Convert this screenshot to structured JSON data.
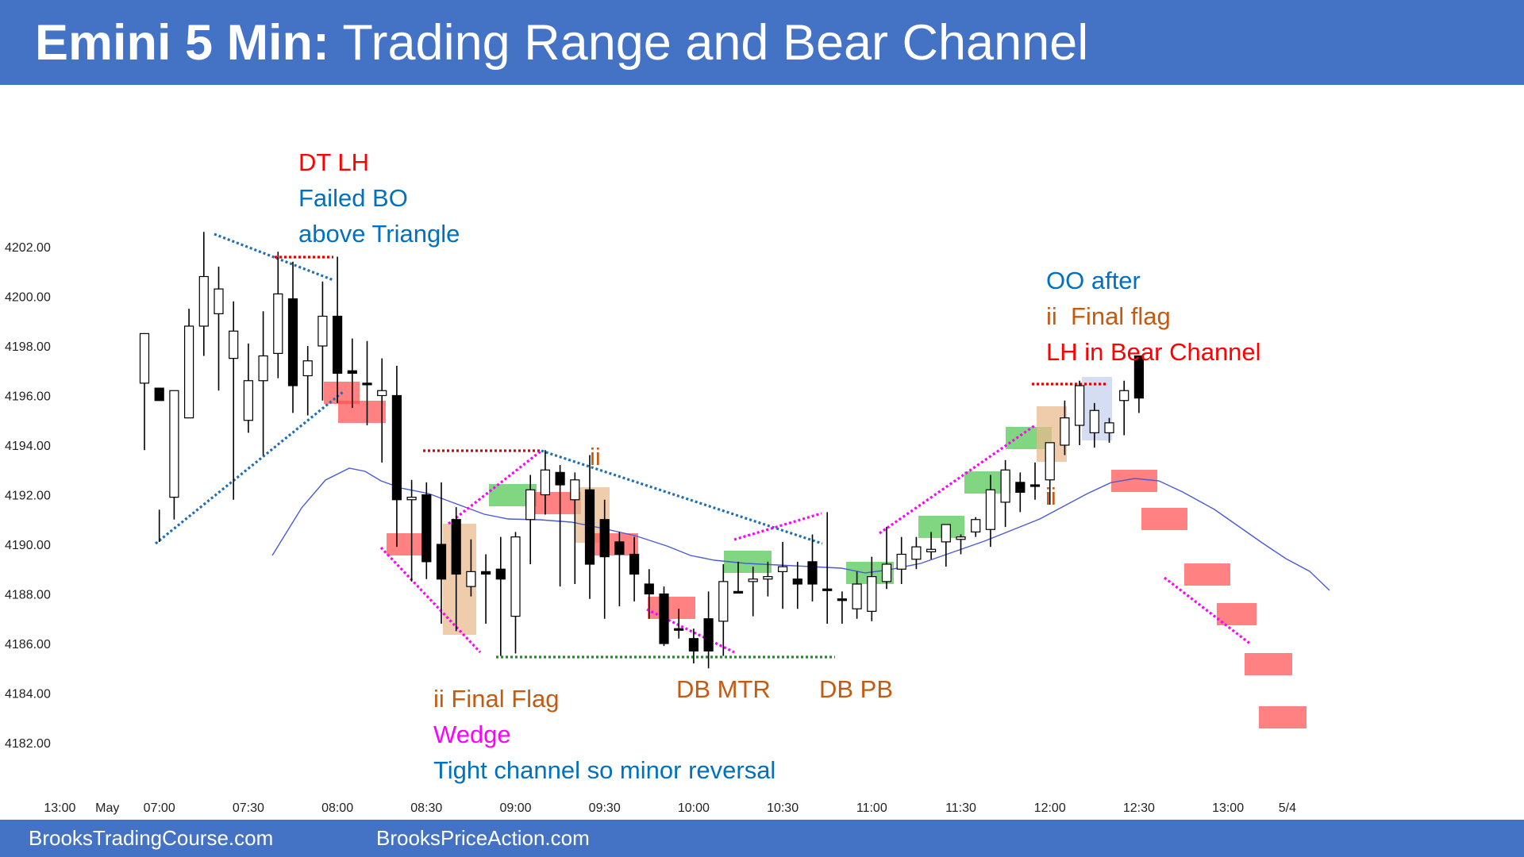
{
  "header": {
    "title_bold": "Emini 5 Min:",
    "title_rest": " Trading Range and Bear Channel"
  },
  "footer": {
    "left": "BrooksTradingCourse.com",
    "right": "BrooksPriceAction.com"
  },
  "colors": {
    "header_bg": "#4472c4",
    "bull_bar": "#ffffff",
    "bear_bar": "#000000",
    "ema": "#4a5bd6",
    "red_text": "#ff0000",
    "blue_text": "#0070c0",
    "orange_text": "#c55a11",
    "magenta_text": "#ff00ff",
    "red_box": "#ff5050",
    "green_box": "#50c850",
    "tan_box": "#e8b98c",
    "lav_box": "#c5d0ee"
  },
  "chart_data": {
    "type": "candlestick",
    "title": "Emini 5 Min: Trading Range and Bear Channel",
    "ylim": [
      4180.6,
      4205.8
    ],
    "y_ticks": [
      "4202.00",
      "4200.00",
      "4198.00",
      "4196.00",
      "4194.00",
      "4192.00",
      "4190.00",
      "4188.00",
      "4186.00",
      "4184.00",
      "4182.00"
    ],
    "x_ticks": [
      {
        "label": "13:00",
        "bar": -5.7
      },
      {
        "label": "May",
        "bar": -2.5
      },
      {
        "label": "07:00",
        "bar": 1
      },
      {
        "label": "07:30",
        "bar": 7
      },
      {
        "label": "08:00",
        "bar": 13
      },
      {
        "label": "08:30",
        "bar": 19
      },
      {
        "label": "09:00",
        "bar": 25
      },
      {
        "label": "09:30",
        "bar": 31
      },
      {
        "label": "10:00",
        "bar": 37
      },
      {
        "label": "10:30",
        "bar": 43
      },
      {
        "label": "11:00",
        "bar": 49
      },
      {
        "label": "11:30",
        "bar": 55
      },
      {
        "label": "12:00",
        "bar": 61
      },
      {
        "label": "12:30",
        "bar": 67
      },
      {
        "label": "13:00",
        "bar": 73
      },
      {
        "label": "5/4",
        "bar": 77
      }
    ],
    "bars": [
      [
        4196.5,
        4198.5,
        4193.8,
        4198.3
      ],
      [
        4196.3,
        4195.8,
        4190.1,
        4191.4
      ],
      [
        4191.9,
        4196.2,
        4191.0,
        4194.0
      ],
      [
        4195.1,
        4198.8,
        4195.4,
        4199.5
      ],
      [
        4198.8,
        4200.8,
        4197.6,
        4202.6
      ],
      [
        4199.3,
        4200.3,
        4196.2,
        4201.2
      ],
      [
        4197.5,
        4198.6,
        4191.8,
        4199.8
      ],
      [
        4195.0,
        4196.6,
        4194.5,
        4198.1
      ],
      [
        4196.6,
        4197.6,
        4193.6,
        4199.4
      ],
      [
        4197.7,
        4200.1,
        4196.7,
        4201.8
      ],
      [
        4199.9,
        4196.4,
        4195.3,
        4201.4
      ],
      [
        4196.8,
        4197.4,
        4195.2,
        4198.0
      ],
      [
        4198.0,
        4199.2,
        4195.8,
        4200.6
      ],
      [
        4199.2,
        4196.9,
        4195.7,
        4201.6
      ],
      [
        4197.0,
        4196.9,
        4195.5,
        4198.3
      ],
      [
        4196.5,
        4196.5,
        4194.8,
        4198.2
      ],
      [
        4196.0,
        4196.2,
        4193.3,
        4197.5
      ],
      [
        4196.0,
        4191.8,
        4189.9,
        4197.2
      ],
      [
        4191.8,
        4191.9,
        4188.5,
        4192.6
      ],
      [
        4192.0,
        4189.3,
        4188.6,
        4192.5
      ],
      [
        4190.0,
        4188.6,
        4186.8,
        4192.5
      ],
      [
        4191.0,
        4188.8,
        4186.5,
        4191.5
      ],
      [
        4188.3,
        4188.9,
        4187.9,
        4190.2
      ],
      [
        4188.9,
        4188.8,
        4186.8,
        4189.6
      ],
      [
        4189.0,
        4188.6,
        4185.5,
        4190.3
      ],
      [
        4187.1,
        4190.3,
        4185.6,
        4190.5
      ],
      [
        4191.0,
        4192.2,
        4189.2,
        4192.8
      ],
      [
        4192.0,
        4193.0,
        4191.2,
        4193.8
      ],
      [
        4192.9,
        4192.4,
        4188.3,
        4193.2
      ],
      [
        4191.8,
        4192.6,
        4188.4,
        4192.9
      ],
      [
        4192.2,
        4189.2,
        4187.8,
        4193.6
      ],
      [
        4191.0,
        4189.5,
        4187.0,
        4191.8
      ],
      [
        4190.1,
        4189.6,
        4187.5,
        4190.5
      ],
      [
        4189.6,
        4188.8,
        4187.7,
        4190.3
      ],
      [
        4188.4,
        4188.0,
        4187.0,
        4189.0
      ],
      [
        4188.0,
        4186.0,
        4185.9,
        4188.3
      ],
      [
        4186.6,
        4186.6,
        4186.2,
        4187.4
      ],
      [
        4186.2,
        4185.7,
        4185.2,
        4186.6
      ],
      [
        4187.0,
        4185.7,
        4185.0,
        4188.1
      ],
      [
        4186.9,
        4188.5,
        4185.5,
        4189.2
      ],
      [
        4188.1,
        4188.1,
        4188.1,
        4189.3
      ],
      [
        4188.5,
        4188.6,
        4187.1,
        4189.1
      ],
      [
        4188.6,
        4188.7,
        4187.9,
        4189.3
      ],
      [
        4188.9,
        4189.1,
        4187.4,
        4190.1
      ],
      [
        4188.6,
        4188.4,
        4187.4,
        4189.3
      ],
      [
        4189.3,
        4188.4,
        4187.7,
        4190.4
      ],
      [
        4188.2,
        4188.2,
        4186.8,
        4191.3
      ],
      [
        4187.8,
        4187.8,
        4186.8,
        4188.1
      ],
      [
        4187.4,
        4188.4,
        4187.0,
        4188.9
      ],
      [
        4187.3,
        4188.7,
        4186.9,
        4189.5
      ],
      [
        4188.5,
        4189.2,
        4188.2,
        4190.7
      ],
      [
        4189.0,
        4189.6,
        4188.4,
        4190.3
      ],
      [
        4189.4,
        4189.9,
        4189.0,
        4190.3
      ],
      [
        4189.7,
        4189.8,
        4189.4,
        4190.5
      ],
      [
        4190.1,
        4190.8,
        4189.1,
        4190.6
      ],
      [
        4190.2,
        4190.3,
        4189.6,
        4190.4
      ],
      [
        4190.5,
        4191.0,
        4190.3,
        4191.1
      ],
      [
        4190.6,
        4192.2,
        4189.9,
        4192.8
      ],
      [
        4191.7,
        4193.0,
        4190.7,
        4193.4
      ],
      [
        4192.5,
        4192.1,
        4191.3,
        4192.9
      ],
      [
        4192.4,
        4192.4,
        4191.8,
        4193.3
      ],
      [
        4192.6,
        4194.1,
        4191.6,
        4193.4
      ],
      [
        4194.0,
        4195.1,
        4193.6,
        4195.8
      ],
      [
        4194.8,
        4196.4,
        4194.0,
        4196.6
      ],
      [
        4194.5,
        4195.4,
        4193.9,
        4195.7
      ],
      [
        4194.5,
        4194.9,
        4194.1,
        4195.1
      ],
      [
        4195.8,
        4196.2,
        4194.4,
        4196.6
      ],
      [
        4197.6,
        4195.9,
        4195.3,
        4197.0
      ]
    ],
    "annotations": [
      "DT LH",
      "Failed BO",
      "above Triangle",
      "ii",
      "OO after",
      "ii  Final flag",
      "LH in Bear Channel",
      "ii",
      "ii Final Flag",
      "Wedge",
      "Tight channel so minor reversal",
      "DB MTR",
      "DB PB"
    ]
  }
}
